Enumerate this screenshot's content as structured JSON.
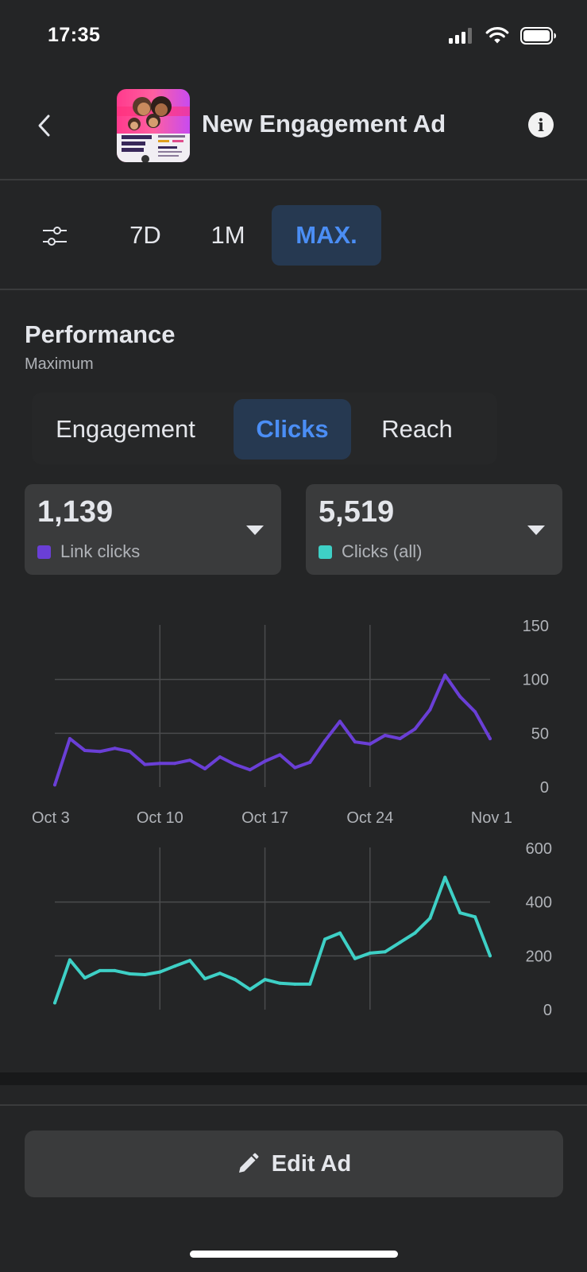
{
  "status_bar": {
    "time": "17:35",
    "icons": [
      "signal-icon",
      "wifi-icon",
      "battery-icon"
    ]
  },
  "header": {
    "title": "New Engagement Ad",
    "back_icon": "chevron-left-icon",
    "info_icon": "info-icon",
    "info_glyph": "i"
  },
  "date_range": {
    "filter_icon": "sliders-icon",
    "tabs": [
      {
        "label": "7D",
        "active": false
      },
      {
        "label": "1M",
        "active": false
      },
      {
        "label": "MAX.",
        "active": true
      }
    ]
  },
  "performance": {
    "title": "Performance",
    "subtitle": "Maximum",
    "tabs": [
      {
        "label": "Engagement",
        "active": false
      },
      {
        "label": "Clicks",
        "active": true
      },
      {
        "label": "Reach",
        "active": false
      }
    ],
    "stats": [
      {
        "value": "1,139",
        "label": "Link clicks",
        "color": "#6a3fd6"
      },
      {
        "value": "5,519",
        "label": "Clicks (all)",
        "color": "#3ed0c6"
      }
    ]
  },
  "chart_data": [
    {
      "type": "line",
      "x_tick_labels": [
        "Oct 3",
        "Oct 10",
        "Oct 17",
        "Oct 24",
        "Nov 1"
      ],
      "ylim": [
        0,
        150
      ],
      "y_tick_labels": [
        "150",
        "100",
        "50",
        "0"
      ],
      "grid": true,
      "series": [
        {
          "name": "Link clicks",
          "color": "#6a3fd6",
          "x": [
            "Oct 3",
            "Oct 4",
            "Oct 5",
            "Oct 6",
            "Oct 7",
            "Oct 8",
            "Oct 9",
            "Oct 10",
            "Oct 11",
            "Oct 12",
            "Oct 13",
            "Oct 14",
            "Oct 15",
            "Oct 16",
            "Oct 17",
            "Oct 18",
            "Oct 19",
            "Oct 20",
            "Oct 21",
            "Oct 22",
            "Oct 23",
            "Oct 24",
            "Oct 25",
            "Oct 26",
            "Oct 27",
            "Oct 28",
            "Oct 29",
            "Oct 30",
            "Oct 31",
            "Nov 1"
          ],
          "values": [
            2,
            45,
            34,
            33,
            36,
            33,
            21,
            22,
            22,
            25,
            17,
            28,
            21,
            16,
            24,
            30,
            18,
            23,
            43,
            61,
            42,
            40,
            48,
            45,
            54,
            72,
            104,
            84,
            70,
            45
          ]
        }
      ]
    },
    {
      "type": "line",
      "x_tick_labels": [],
      "ylim": [
        0,
        600
      ],
      "y_tick_labels": [
        "600",
        "400",
        "200",
        "0"
      ],
      "grid": true,
      "series": [
        {
          "name": "Clicks (all)",
          "color": "#3ed0c6",
          "x": [
            "Oct 3",
            "Oct 4",
            "Oct 5",
            "Oct 6",
            "Oct 7",
            "Oct 8",
            "Oct 9",
            "Oct 10",
            "Oct 11",
            "Oct 12",
            "Oct 13",
            "Oct 14",
            "Oct 15",
            "Oct 16",
            "Oct 17",
            "Oct 18",
            "Oct 19",
            "Oct 20",
            "Oct 21",
            "Oct 22",
            "Oct 23",
            "Oct 24",
            "Oct 25",
            "Oct 26",
            "Oct 27",
            "Oct 28",
            "Oct 29",
            "Oct 30",
            "Oct 31",
            "Nov 1"
          ],
          "values": [
            25,
            185,
            118,
            145,
            145,
            133,
            130,
            140,
            162,
            183,
            115,
            135,
            112,
            75,
            112,
            98,
            95,
            95,
            262,
            285,
            190,
            210,
            215,
            250,
            285,
            340,
            492,
            360,
            345,
            200
          ]
        }
      ]
    }
  ],
  "edit_button": {
    "label": "Edit Ad",
    "icon": "pencil-icon"
  }
}
